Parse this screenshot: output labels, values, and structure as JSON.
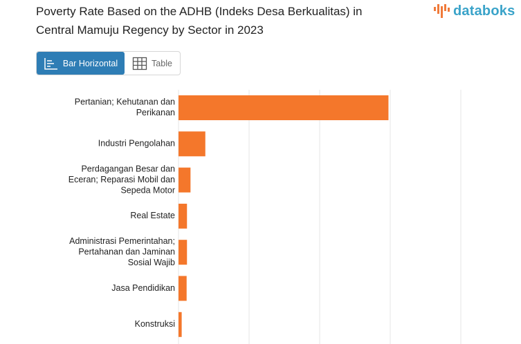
{
  "header": {
    "title_line1": "Poverty Rate Based on the ADHB (Indeks Desa Berkualitas) in",
    "title_line2": "Central Mamuju Regency by Sector in 2023",
    "logo_text": "databoks"
  },
  "toggle": {
    "bar_label": "Bar Horizontal",
    "table_label": "Table"
  },
  "colors": {
    "bar": "#f4772b",
    "grid": "#e6e6e6",
    "accent": "#2e7db5",
    "logo": "#3aa3c9",
    "logo_mark": "#f07a3a"
  },
  "chart_data": {
    "type": "bar",
    "orientation": "horizontal",
    "title": "Poverty Rate Based on the ADHB (Indeks Desa Berkualitas) in Central Mamuju Regency by Sector in 2023",
    "categories": [
      [
        "Pertanian; Kehutanan dan",
        "Perikanan"
      ],
      [
        "Industri Pengolahan"
      ],
      [
        "Perdagangan Besar dan",
        "Eceran; Reparasi Mobil dan",
        "Sepeda Motor"
      ],
      [
        "Real Estate"
      ],
      [
        "Administrasi Pemerintahan;",
        "Pertahanan dan Jaminan",
        "Sosial Wajib"
      ],
      [
        "Jasa Pendidikan"
      ],
      [
        "Konstruksi"
      ]
    ],
    "values": [
      59.5,
      7.6,
      3.4,
      2.4,
      2.4,
      2.3,
      0.9
    ],
    "xlim": [
      0,
      80
    ],
    "grid": true
  }
}
